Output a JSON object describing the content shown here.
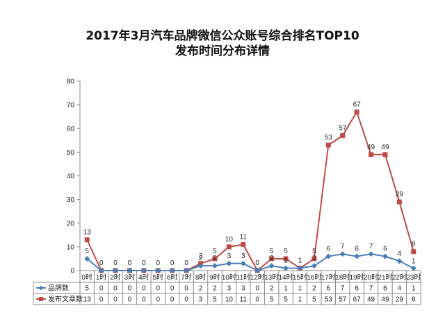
{
  "chart_data": {
    "type": "line",
    "title_line1": "2017年3月汽车品牌微信公众账号综合排名TOP10",
    "title_line2": "发布时间分布详情",
    "categories": [
      "0时",
      "1时",
      "2时",
      "3时",
      "4时",
      "5时",
      "6时",
      "7时",
      "8时",
      "9时",
      "10时",
      "11时",
      "12时",
      "13时",
      "14时",
      "15时",
      "16时",
      "17时",
      "18时",
      "19时",
      "20时",
      "21时",
      "22时",
      "23时"
    ],
    "ylim": [
      0,
      80
    ],
    "yticks": [
      0,
      10,
      20,
      30,
      40,
      50,
      60,
      70,
      80
    ],
    "grid": false,
    "legend": "table-bottom",
    "series": [
      {
        "name": "品牌数",
        "color": "#4a7ebb",
        "marker": "diamond",
        "values": [
          5,
          0,
          0,
          0,
          0,
          0,
          0,
          0,
          2,
          2,
          3,
          3,
          0,
          2,
          1,
          1,
          2,
          6,
          7,
          6,
          7,
          6,
          4,
          1
        ],
        "point_labels": [
          "5",
          "",
          "",
          "",
          "",
          "",
          "",
          "",
          "2",
          "2",
          "3",
          "3",
          "",
          "2",
          "1",
          "1",
          "2",
          "6",
          "7",
          "6",
          "7",
          "6",
          "4",
          "1"
        ]
      },
      {
        "name": "发布文章数",
        "color": "#be4b48",
        "marker": "square",
        "values": [
          13,
          0,
          0,
          0,
          0,
          0,
          0,
          0,
          3,
          5,
          10,
          11,
          0,
          5,
          5,
          1,
          5,
          53,
          57,
          67,
          49,
          49,
          29,
          8
        ],
        "point_labels": [
          "13",
          "0",
          "0",
          "0",
          "0",
          "0",
          "0",
          "0",
          "3",
          "5",
          "10",
          "11",
          "0",
          "5",
          "5",
          "1",
          "5",
          "53",
          "57",
          "67",
          "49",
          "49",
          "29",
          "8"
        ]
      }
    ]
  }
}
